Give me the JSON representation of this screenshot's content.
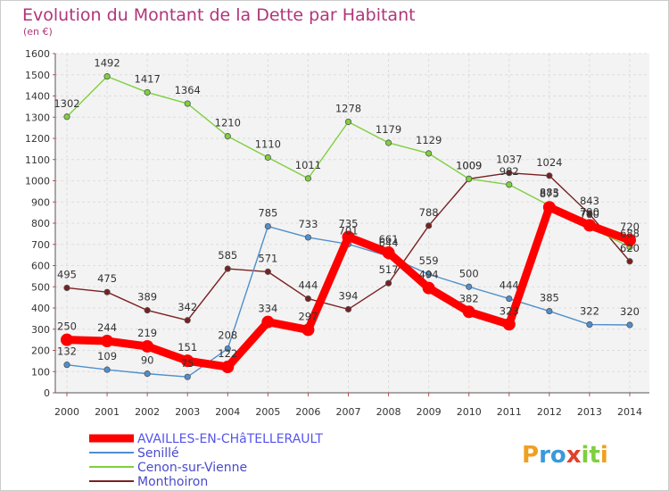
{
  "chart_data": {
    "type": "line",
    "title": "Evolution du Montant de la Dette par Habitant",
    "subtitle": "(en €)",
    "xlabel": "",
    "ylabel": "",
    "x": [
      "2000",
      "2001",
      "2002",
      "2003",
      "2004",
      "2005",
      "2006",
      "2007",
      "2008",
      "2009",
      "2010",
      "2011",
      "2012",
      "2013",
      "2014"
    ],
    "ylim": [
      0,
      1600
    ],
    "yticks": [
      "0",
      "100",
      "200",
      "300",
      "400",
      "500",
      "600",
      "700",
      "800",
      "900",
      "1000",
      "1100",
      "1200",
      "1300",
      "1400",
      "1500",
      "1600"
    ],
    "grid": true,
    "legend_position": "bottom-left",
    "series": [
      {
        "name": "AVAILLES-EN-CHâTELLERAULT",
        "color": "#ff0000",
        "values": [
          250,
          244,
          219,
          151,
          122,
          334,
          297,
          735,
          661,
          494,
          382,
          323,
          875,
          790,
          720
        ],
        "labels": [
          "250",
          "244",
          "219",
          "151",
          "122",
          "334",
          "297",
          "735",
          "661",
          "494",
          "382",
          "323",
          "875",
          "790",
          "720"
        ]
      },
      {
        "name": "Senillé",
        "color": "#4f8fcc",
        "values": [
          132,
          109,
          90,
          75,
          208,
          785,
          733,
          701,
          644,
          559,
          500,
          444,
          385,
          322,
          320
        ],
        "labels": [
          "132",
          "109",
          "90",
          "75",
          "208",
          "785",
          "733",
          "701",
          "644",
          "559",
          "500",
          "444",
          "385",
          "322",
          "320"
        ]
      },
      {
        "name": "Cenon-sur-Vienne",
        "color": "#7fcf3f",
        "values": [
          1302,
          1492,
          1417,
          1364,
          1210,
          1110,
          1011,
          1278,
          1179,
          1129,
          1009,
          982,
          883,
          780,
          688
        ],
        "labels": [
          "1302",
          "1492",
          "1417",
          "1364",
          "1210",
          "1110",
          "1011",
          "1278",
          "1179",
          "1129",
          "1009",
          "982",
          "883",
          "780",
          "688"
        ]
      },
      {
        "name": "Monthoiron",
        "color": "#7a2020",
        "values": [
          495,
          475,
          389,
          342,
          585,
          571,
          444,
          394,
          517,
          788,
          1009,
          1037,
          1024,
          843,
          620
        ],
        "labels": [
          "495",
          "475",
          "389",
          "342",
          "585",
          "571",
          "444",
          "394",
          "517",
          "788",
          "1009",
          "1037",
          "1024",
          "843",
          "620"
        ]
      }
    ]
  },
  "logo": {
    "text": "Proxiti"
  }
}
